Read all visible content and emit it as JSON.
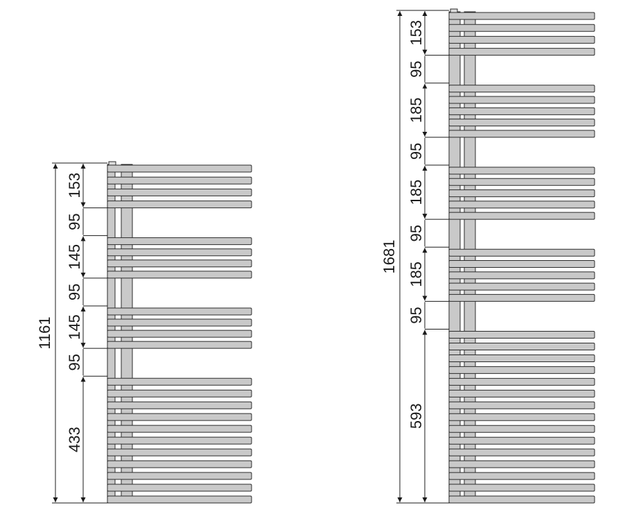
{
  "colors": {
    "bar_fill": "#c9c9c9",
    "outline": "#2a2a2a",
    "dimension_line": "#1a1a1a"
  },
  "radiators": [
    {
      "total_label": "1161",
      "total_mm": 1161,
      "segments": [
        {
          "label": "153",
          "mm": 153,
          "bars": 4
        },
        {
          "label": "95",
          "mm": 95,
          "bars": 0
        },
        {
          "label": "145",
          "mm": 145,
          "bars": 4
        },
        {
          "label": "95",
          "mm": 95,
          "bars": 0
        },
        {
          "label": "145",
          "mm": 145,
          "bars": 4
        },
        {
          "label": "95",
          "mm": 95,
          "bars": 0
        },
        {
          "label": "433",
          "mm": 433,
          "bars": 11
        }
      ]
    },
    {
      "total_label": "1681",
      "total_mm": 1681,
      "segments": [
        {
          "label": "153",
          "mm": 153,
          "bars": 4
        },
        {
          "label": "95",
          "mm": 95,
          "bars": 0
        },
        {
          "label": "185",
          "mm": 185,
          "bars": 5
        },
        {
          "label": "95",
          "mm": 95,
          "bars": 0
        },
        {
          "label": "185",
          "mm": 185,
          "bars": 5
        },
        {
          "label": "95",
          "mm": 95,
          "bars": 0
        },
        {
          "label": "185",
          "mm": 185,
          "bars": 5
        },
        {
          "label": "95",
          "mm": 95,
          "bars": 0
        },
        {
          "label": "593",
          "mm": 593,
          "bars": 15
        }
      ]
    }
  ]
}
